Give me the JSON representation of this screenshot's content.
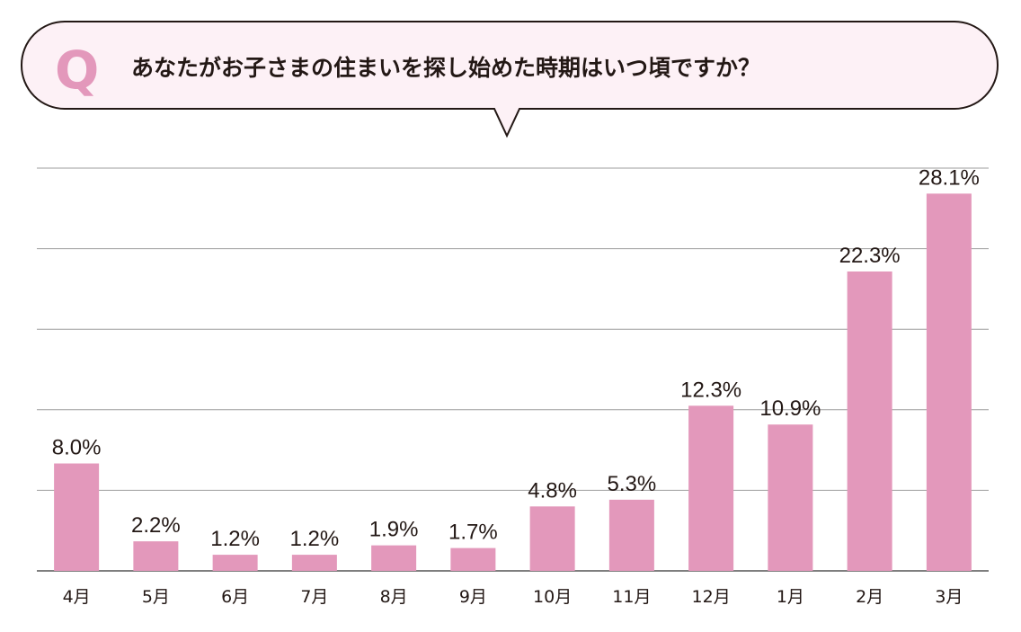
{
  "question": {
    "badge": "Q",
    "text": "あなたがお子さまの住まいを探し始めた時期はいつ頃ですか？"
  },
  "colors": {
    "bar": "#e398bb",
    "bubble_fill": "#fdf1f6",
    "bubble_stroke": "#231815",
    "grid": "#9e9e9e"
  },
  "chart_data": {
    "type": "bar",
    "title": "あなたがお子さまの住まいを探し始めた時期はいつ頃ですか？",
    "categories": [
      "4月",
      "5月",
      "6月",
      "7月",
      "8月",
      "9月",
      "10月",
      "11月",
      "12月",
      "1月",
      "2月",
      "3月"
    ],
    "values": [
      8.0,
      2.2,
      1.2,
      1.2,
      1.9,
      1.7,
      4.8,
      5.3,
      12.3,
      10.9,
      22.3,
      28.1
    ],
    "data_labels": [
      "8.0%",
      "2.2%",
      "1.2%",
      "1.2%",
      "1.9%",
      "1.7%",
      "4.8%",
      "5.3%",
      "12.3%",
      "10.9%",
      "22.3%",
      "28.1%"
    ],
    "unit": "%",
    "ylim": [
      0,
      30
    ],
    "gridlines": [
      0,
      6,
      12,
      18,
      24,
      30
    ],
    "grid": true,
    "y_tick_labels_shown": false
  }
}
